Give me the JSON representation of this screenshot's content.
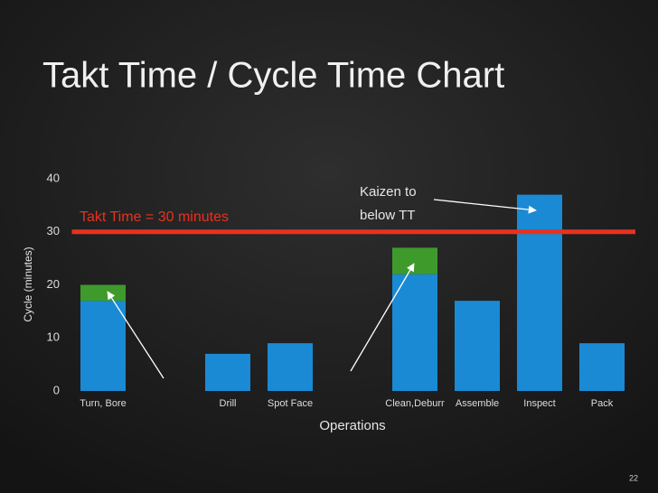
{
  "chart_data": {
    "type": "bar",
    "title": "Takt Time / Cycle Time Chart",
    "categories": [
      "Turn, Bore",
      null,
      "Drill",
      "Spot Face",
      null,
      "Clean,Deburr",
      "Assemble",
      "Inspect",
      "Pack"
    ],
    "series": [
      {
        "color": "#1a8ad4",
        "values": [
          17,
          null,
          7,
          9,
          null,
          22,
          17,
          37,
          9
        ]
      },
      {
        "color": "#3f9a2c",
        "values": [
          3,
          null,
          null,
          null,
          null,
          5,
          null,
          null,
          null
        ]
      }
    ],
    "stacked": true,
    "ylim": [
      0,
      40
    ],
    "yticks": [
      0,
      10,
      20,
      30,
      40
    ],
    "y_label": "Cycle (minutes)",
    "x_label": "Operations",
    "takt_time": 30,
    "takt_color": "#e8321e",
    "takt_label": "Takt Time = 30 minutes",
    "annotation": [
      "Kaizen to",
      "below TT"
    ],
    "page_number": "22"
  }
}
